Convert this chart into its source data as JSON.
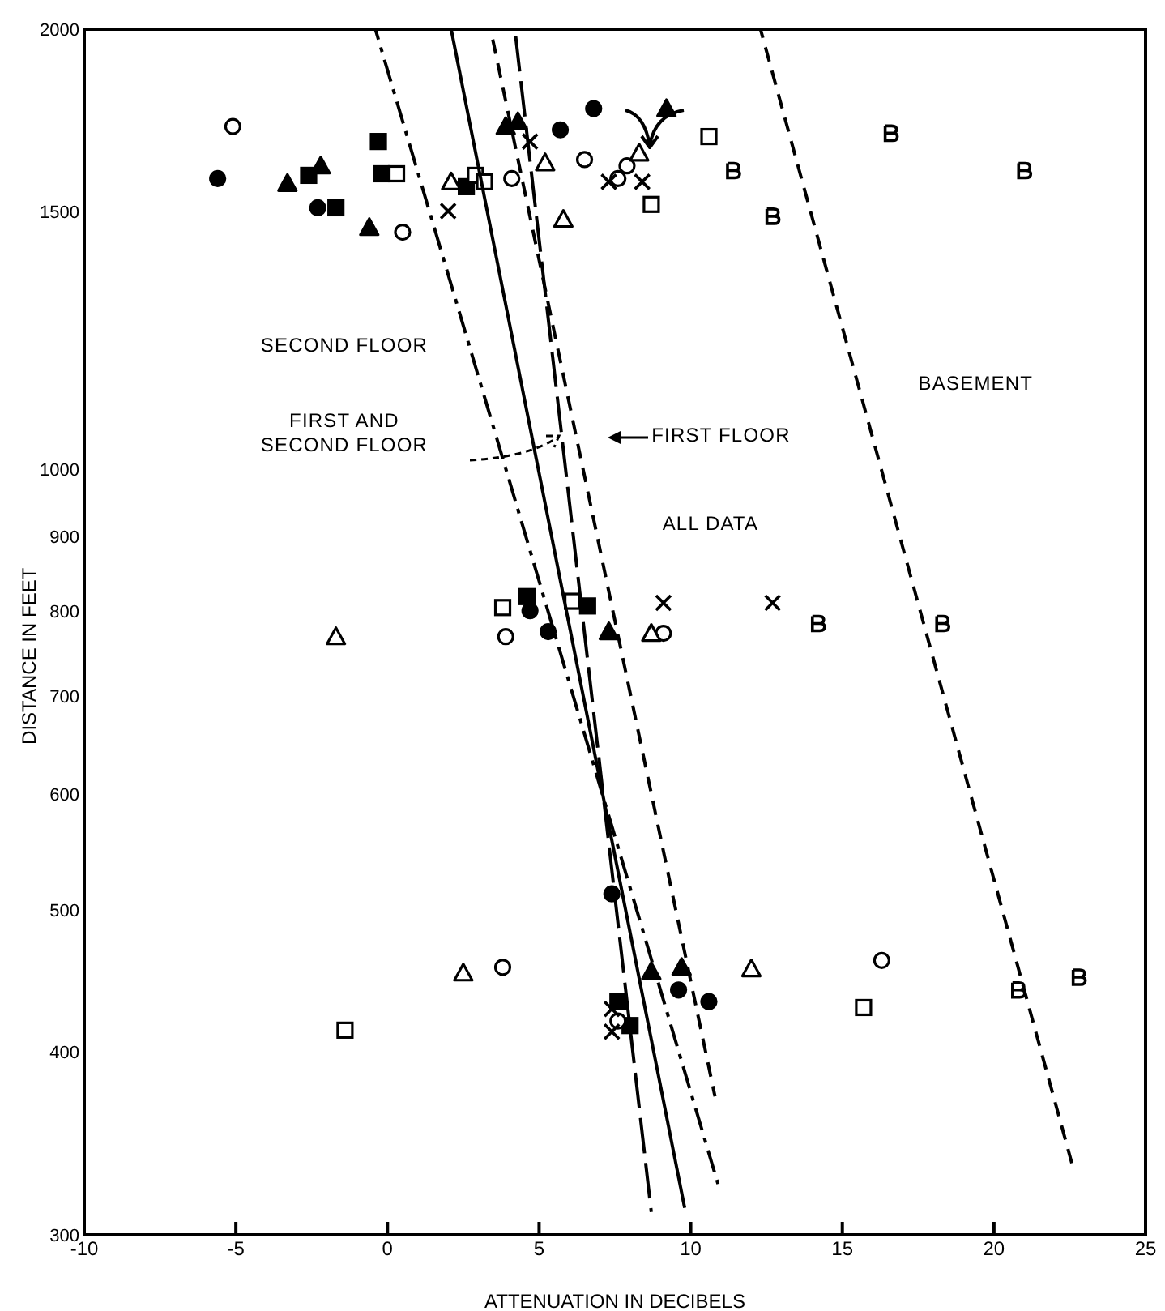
{
  "chart_data": {
    "type": "scatter",
    "xlabel": "ATTENUATION IN DECIBELS",
    "ylabel": "DISTANCE IN FEET",
    "log": "y",
    "xlim": [
      -10,
      25
    ],
    "xticks": [
      -10,
      -5,
      0,
      5,
      10,
      15,
      20,
      25
    ],
    "ylim": [
      300,
      2000
    ],
    "yticks": [
      300,
      400,
      500,
      600,
      700,
      800,
      900,
      1000,
      1500,
      2000
    ],
    "grid": false,
    "series": [
      {
        "type": "scatter",
        "marker": "circle",
        "color": "#000000",
        "x": [
          -5.6,
          -2.3,
          5.7,
          6.8,
          4.7,
          5.3,
          7.4,
          9.6,
          10.6
        ],
        "values": [
          1581,
          1510,
          1707,
          1765,
          801,
          775,
          513,
          441,
          433
        ]
      },
      {
        "type": "scatter",
        "marker": "square",
        "color": "#000000",
        "x": [
          -2.6,
          -1.7,
          -0.3,
          -0.2,
          2.6,
          4.6,
          6.6,
          7.6,
          8.0
        ],
        "values": [
          1589,
          1510,
          1676,
          1593,
          1561,
          819,
          807,
          433,
          417
        ]
      },
      {
        "type": "scatter",
        "marker": "triangle",
        "color": "#000000",
        "x": [
          -3.3,
          -2.2,
          -0.6,
          3.9,
          4.3,
          9.2,
          7.3,
          8.7,
          9.7
        ],
        "values": [
          1569,
          1613,
          1464,
          1716,
          1729,
          1765,
          775,
          454,
          457
        ]
      },
      {
        "type": "scatter",
        "marker": "circle",
        "color": "#ffffff",
        "x": [
          -5.1,
          0.5,
          4.1,
          6.5,
          7.9,
          7.6,
          3.9,
          9.1,
          3.8,
          16.3,
          7.6
        ],
        "values": [
          1716,
          1453,
          1581,
          1629,
          1613,
          1581,
          769,
          773,
          457,
          462,
          420
        ]
      },
      {
        "type": "scatter",
        "marker": "square",
        "color": "#ffffff",
        "x": [
          0.3,
          2.9,
          3.2,
          8.7,
          10.6,
          3.8,
          6.1,
          -1.4,
          15.7
        ],
        "values": [
          1593,
          1589,
          1573,
          1518,
          1689,
          805,
          813,
          414,
          429
        ]
      },
      {
        "type": "scatter",
        "marker": "triangle",
        "color": "#ffffff",
        "x": [
          2.1,
          5.2,
          5.8,
          8.3,
          -1.7,
          8.7,
          2.5,
          12.0
        ],
        "values": [
          1573,
          1621,
          1483,
          1646,
          769,
          773,
          453,
          456
        ]
      },
      {
        "type": "scatter",
        "marker": "cross",
        "color": "#000000",
        "x": [
          2.0,
          4.7,
          7.3,
          8.4,
          9.1,
          12.7,
          7.4,
          7.4
        ],
        "values": [
          1502,
          1676,
          1573,
          1573,
          811,
          811,
          428,
          413
        ]
      },
      {
        "type": "scatter",
        "color": "#000000",
        "x": [
          11.4,
          12.7,
          16.6,
          21.0,
          14.2,
          18.3,
          20.8,
          22.8
        ],
        "values": [
          1601,
          1490,
          1698,
          1601,
          785,
          785,
          441,
          450
        ]
      },
      {
        "type": "line",
        "marker": "none",
        "line_style": "dashdot",
        "color": "#000000",
        "x": [
          -0.4,
          10.9
        ],
        "values": [
          2000,
          325
        ]
      },
      {
        "type": "line",
        "marker": "none",
        "line_style": "solid",
        "color": "#000000",
        "x": [
          2.1,
          9.8
        ],
        "values": [
          2000,
          313
        ]
      },
      {
        "type": "line",
        "marker": "none",
        "line_style": "longdash",
        "color": "#000000",
        "x": [
          4.2,
          8.7
        ],
        "values": [
          2000,
          311
        ]
      },
      {
        "type": "line",
        "marker": "none",
        "line_style": "dashed",
        "color": "#000000",
        "x": [
          3.4,
          10.8
        ],
        "values": [
          2000,
          373
        ]
      },
      {
        "type": "line",
        "marker": "none",
        "line_style": "dashed",
        "color": "#000000",
        "x": [
          12.3,
          22.6
        ],
        "values": [
          2000,
          334
        ]
      }
    ],
    "annotations": [
      "SECOND FLOOR",
      "FIRST AND\nSECOND FLOOR",
      "FIRST FLOOR",
      "ALL DATA",
      "BASEMENT"
    ]
  }
}
